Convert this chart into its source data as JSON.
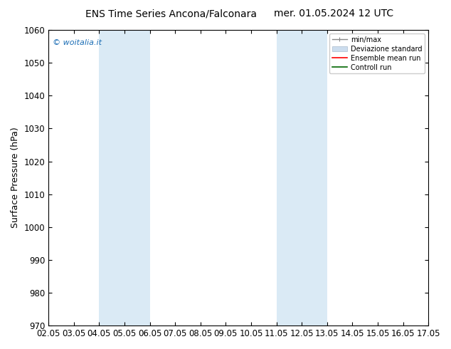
{
  "title_left": "ENS Time Series Ancona/Falconara",
  "title_right": "mer. 01.05.2024 12 UTC",
  "ylabel": "Surface Pressure (hPa)",
  "ylim": [
    970,
    1060
  ],
  "yticks": [
    970,
    980,
    990,
    1000,
    1010,
    1020,
    1030,
    1040,
    1050,
    1060
  ],
  "xtick_labels": [
    "02.05",
    "03.05",
    "04.05",
    "05.05",
    "06.05",
    "07.05",
    "08.05",
    "09.05",
    "10.05",
    "11.05",
    "12.05",
    "13.05",
    "14.05",
    "15.05",
    "16.05",
    "17.05"
  ],
  "shaded_bands": [
    {
      "start": 2,
      "end": 4
    },
    {
      "start": 9,
      "end": 11
    }
  ],
  "shade_color": "#daeaf5",
  "watermark": "© woitalia.it",
  "watermark_color": "#1a6db5",
  "bg_color": "#ffffff",
  "title_fontsize": 10,
  "label_fontsize": 9,
  "tick_fontsize": 8.5
}
